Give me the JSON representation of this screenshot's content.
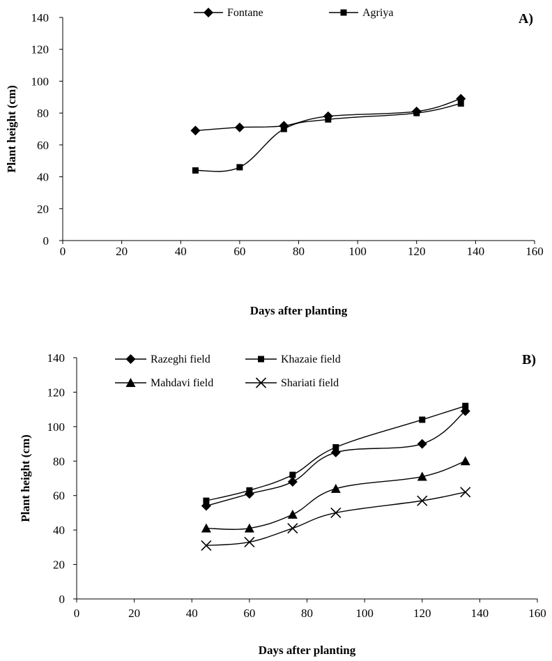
{
  "chart_data": [
    {
      "type": "line",
      "panel_label": "A)",
      "xlabel": "Days after planting",
      "ylabel": "Plant height (cm)",
      "xlim": [
        0,
        160
      ],
      "ylim": [
        0,
        140
      ],
      "xticks": [
        0,
        20,
        40,
        60,
        80,
        100,
        120,
        140,
        160
      ],
      "yticks": [
        0,
        20,
        40,
        60,
        80,
        100,
        120,
        140
      ],
      "grid": false,
      "legend_position": "top-center",
      "x": [
        45,
        60,
        75,
        90,
        120,
        135
      ],
      "series": [
        {
          "name": "Fontane",
          "marker": "diamond",
          "values": [
            69,
            71,
            72,
            78,
            81,
            89
          ]
        },
        {
          "name": "Agriya",
          "marker": "square",
          "values": [
            44,
            46,
            70,
            76,
            80,
            86
          ]
        }
      ]
    },
    {
      "type": "line",
      "panel_label": "B)",
      "xlabel": "Days after planting",
      "ylabel": "Plant height (cm)",
      "xlim": [
        0,
        160
      ],
      "ylim": [
        0,
        140
      ],
      "xticks": [
        0,
        20,
        40,
        60,
        80,
        100,
        120,
        140,
        160
      ],
      "yticks": [
        0,
        20,
        40,
        60,
        80,
        100,
        120,
        140
      ],
      "grid": false,
      "legend_position": "top-left",
      "x": [
        45,
        60,
        75,
        90,
        120,
        135
      ],
      "series": [
        {
          "name": "Razeghi field",
          "marker": "diamond",
          "values": [
            54,
            61,
            68,
            85,
            90,
            109
          ]
        },
        {
          "name": "Khazaie field",
          "marker": "square",
          "values": [
            57,
            63,
            72,
            88,
            104,
            112
          ]
        },
        {
          "name": "Mahdavi field",
          "marker": "triangle",
          "values": [
            41,
            41,
            49,
            64,
            71,
            80
          ]
        },
        {
          "name": "Shariati field",
          "marker": "x",
          "values": [
            31,
            33,
            41,
            50,
            57,
            62
          ]
        }
      ]
    }
  ]
}
